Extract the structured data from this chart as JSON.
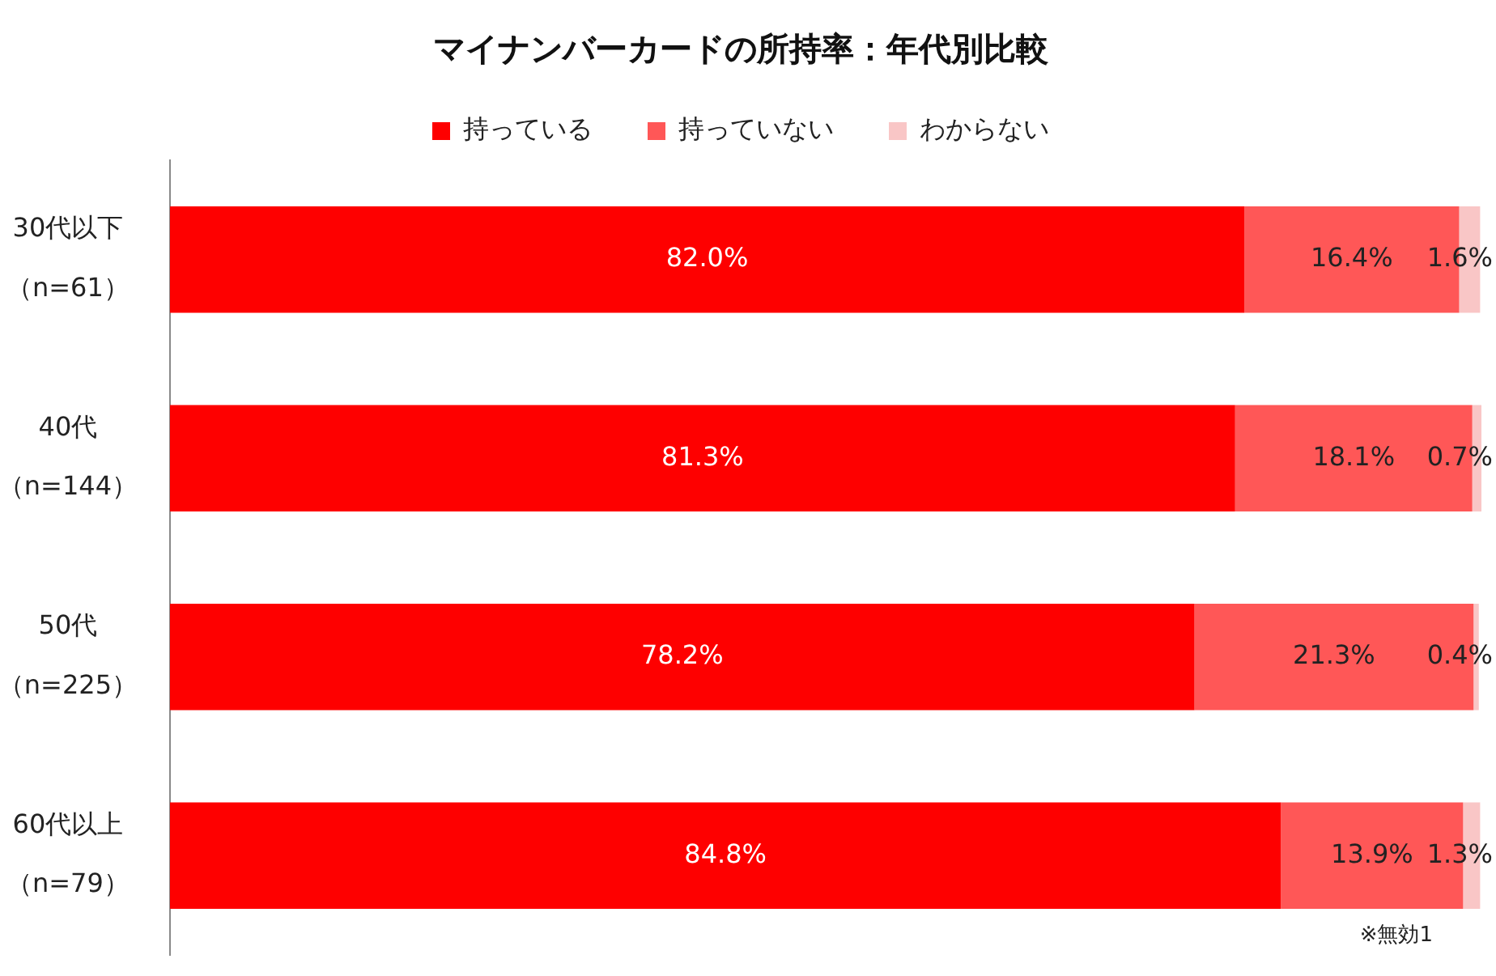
{
  "chart_data": {
    "type": "bar",
    "orientation": "horizontal",
    "stacked": true,
    "title": "マイナンバーカードの所持率：年代別比較",
    "categories": [
      "30代以下（n=61）",
      "40代（n=144）",
      "50代（n=225）",
      "60代以上（n=79）"
    ],
    "series": [
      {
        "name": "持っている",
        "color": "#fe0000",
        "values": [
          82.0,
          81.3,
          78.2,
          84.8
        ],
        "value_labels": [
          "82.0%",
          "81.3%",
          "78.2%",
          "84.8%"
        ]
      },
      {
        "name": "持っていない",
        "color": "#ff5757",
        "values": [
          16.4,
          18.1,
          21.3,
          13.9
        ],
        "value_labels": [
          "16.4%",
          "18.1%",
          "21.3%",
          "13.9%"
        ]
      },
      {
        "name": "わからない",
        "color": "#f9c6c6",
        "values": [
          1.6,
          0.7,
          0.4,
          1.3
        ],
        "value_labels": [
          "1.6%",
          "0.7%",
          "0.4%",
          "1.3%"
        ]
      }
    ],
    "legend": "top",
    "grid": false,
    "tick_labels": "y",
    "annotations": [
      "※無効1"
    ]
  }
}
